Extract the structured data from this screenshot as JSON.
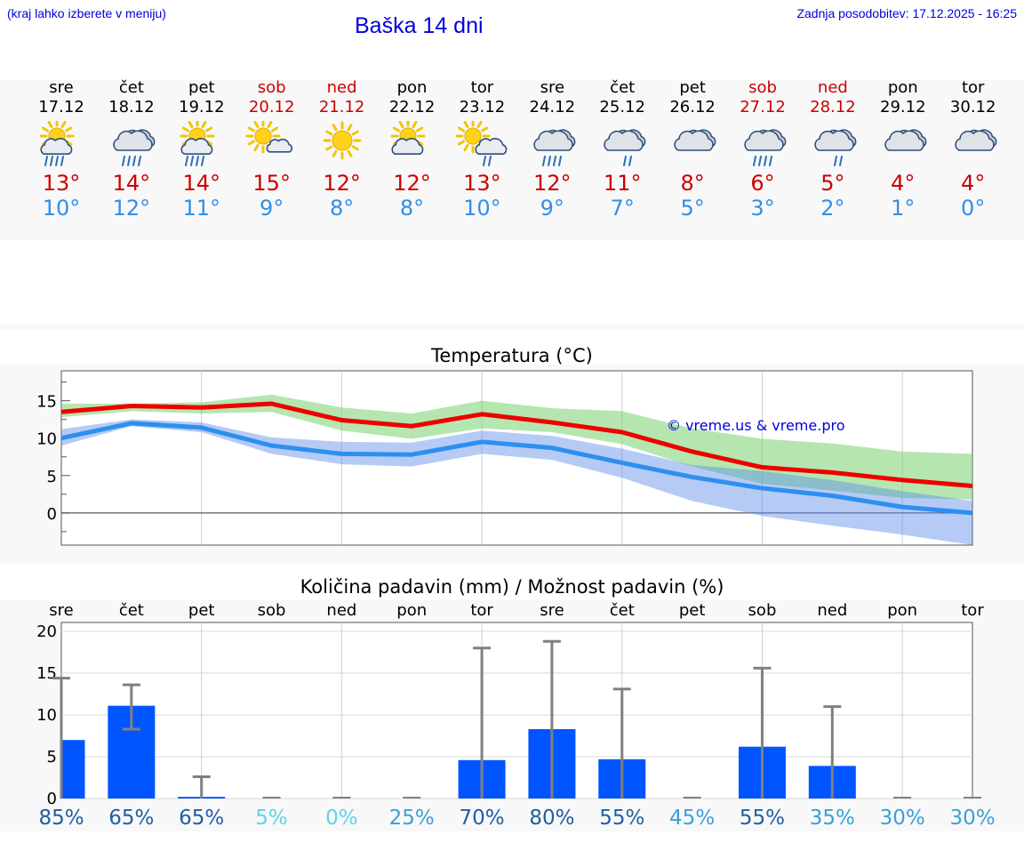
{
  "header": {
    "note": "(kraj lahko izberete v meniju)",
    "title": "Baška 14 dni",
    "updated": "Zadnja posodobitev: 17.12.2025 - 16:25"
  },
  "colors": {
    "max": "#cc0000",
    "min": "#2f8fe8",
    "weekend": "#cc0000",
    "weekday": "#000000",
    "bar": "#0055ff"
  },
  "days": [
    {
      "name": "sre",
      "date": "17.12",
      "max": "13°",
      "min": "10°",
      "weekend": false,
      "icon": "sun-cloud-rain-icon"
    },
    {
      "name": "čet",
      "date": "18.12",
      "max": "14°",
      "min": "12°",
      "weekend": false,
      "icon": "cloud-rain-icon"
    },
    {
      "name": "pet",
      "date": "19.12",
      "max": "14°",
      "min": "11°",
      "weekend": false,
      "icon": "sun-cloud-rain-icon"
    },
    {
      "name": "sob",
      "date": "20.12",
      "max": "15°",
      "min": "9°",
      "weekend": true,
      "icon": "sun-small-cloud-icon"
    },
    {
      "name": "ned",
      "date": "21.12",
      "max": "12°",
      "min": "8°",
      "weekend": true,
      "icon": "sun-icon"
    },
    {
      "name": "pon",
      "date": "22.12",
      "max": "12°",
      "min": "8°",
      "weekend": false,
      "icon": "sun-cloud-icon"
    },
    {
      "name": "tor",
      "date": "23.12",
      "max": "13°",
      "min": "10°",
      "weekend": false,
      "icon": "sun-cloud-light-rain-icon"
    },
    {
      "name": "sre",
      "date": "24.12",
      "max": "12°",
      "min": "9°",
      "weekend": false,
      "icon": "cloud-rain-icon"
    },
    {
      "name": "čet",
      "date": "25.12",
      "max": "11°",
      "min": "7°",
      "weekend": false,
      "icon": "cloud-light-rain-icon"
    },
    {
      "name": "pet",
      "date": "26.12",
      "max": "8°",
      "min": "5°",
      "weekend": false,
      "icon": "cloud-icon"
    },
    {
      "name": "sob",
      "date": "27.12",
      "max": "6°",
      "min": "3°",
      "weekend": true,
      "icon": "cloud-rain-icon"
    },
    {
      "name": "ned",
      "date": "28.12",
      "max": "5°",
      "min": "2°",
      "weekend": true,
      "icon": "cloud-light-rain-icon"
    },
    {
      "name": "pon",
      "date": "29.12",
      "max": "4°",
      "min": "1°",
      "weekend": false,
      "icon": "cloud-icon"
    },
    {
      "name": "tor",
      "date": "30.12",
      "max": "4°",
      "min": "0°",
      "weekend": false,
      "icon": "cloud-icon"
    }
  ],
  "chart_data": [
    {
      "type": "line",
      "title": "Temperatura (°C)",
      "watermark": "© vreme.us & vreme.pro",
      "ylim": [
        -4.3,
        19
      ],
      "yticks": [
        "0",
        "5",
        "10",
        "15"
      ],
      "x": [
        1,
        2,
        3,
        4,
        5,
        6,
        7,
        8,
        9,
        10,
        11,
        12,
        13,
        14
      ],
      "series": [
        {
          "name": "max",
          "values": [
            13.5,
            14.3,
            14.1,
            14.6,
            12.4,
            11.6,
            13.2,
            12.1,
            10.8,
            8.2,
            6.1,
            5.4,
            4.4,
            3.6
          ],
          "band_low": [
            12.8,
            13.6,
            13.3,
            13.5,
            11.0,
            9.9,
            11.3,
            10.8,
            9.2,
            6.2,
            3.9,
            3.0,
            2.0,
            1.8
          ],
          "band_high": [
            14.6,
            14.6,
            14.8,
            15.8,
            14.1,
            13.3,
            15.0,
            14.0,
            13.6,
            11.3,
            9.9,
            9.3,
            8.2,
            7.9
          ]
        },
        {
          "name": "min",
          "values": [
            10.0,
            12.0,
            11.4,
            9.0,
            7.9,
            7.8,
            9.5,
            8.7,
            6.7,
            4.8,
            3.3,
            2.3,
            0.8,
            0.0
          ],
          "band_low": [
            9.0,
            11.6,
            10.8,
            7.9,
            6.5,
            6.2,
            7.9,
            7.1,
            4.7,
            1.6,
            -0.4,
            -1.7,
            -2.9,
            -4.3
          ],
          "band_high": [
            11.2,
            12.5,
            12.1,
            10.1,
            9.5,
            9.4,
            11.0,
            10.3,
            8.6,
            6.4,
            5.6,
            4.4,
            2.9,
            1.6
          ]
        }
      ]
    },
    {
      "type": "bar",
      "title": "Količina padavin (mm) / Možnost padavin (%)",
      "ylim": [
        0,
        20
      ],
      "yticks": [
        "0",
        "5",
        "10",
        "15",
        "20"
      ],
      "categories": [
        "sre",
        "čet",
        "pet",
        "sob",
        "ned",
        "pon",
        "tor",
        "sre",
        "čet",
        "pet",
        "sob",
        "ned",
        "pon",
        "tor"
      ],
      "values": [
        7.0,
        11.1,
        0.2,
        0,
        0,
        0,
        4.6,
        8.3,
        4.7,
        0,
        6.2,
        3.9,
        0,
        0
      ],
      "err_low": [
        0,
        8.3,
        0,
        0,
        0,
        0,
        0,
        0,
        0,
        0,
        0,
        0,
        0,
        0
      ],
      "err_high": [
        14.4,
        13.6,
        2.6,
        0,
        0,
        0,
        18.0,
        18.8,
        13.1,
        0,
        15.6,
        11.0,
        0,
        0
      ],
      "probability": [
        "85%",
        "65%",
        "65%",
        "5%",
        "0%",
        "25%",
        "70%",
        "80%",
        "55%",
        "45%",
        "55%",
        "35%",
        "30%",
        "30%"
      ],
      "probability_colors": [
        "#1f5fa5",
        "#1f5fa5",
        "#1f5fa5",
        "#5fd3e8",
        "#5fd3e8",
        "#3aa0d8",
        "#1f5fa5",
        "#1f5fa5",
        "#1f5fa5",
        "#3aa0d8",
        "#1f5fa5",
        "#3aa0d8",
        "#3aa0d8",
        "#3aa0d8"
      ]
    }
  ]
}
